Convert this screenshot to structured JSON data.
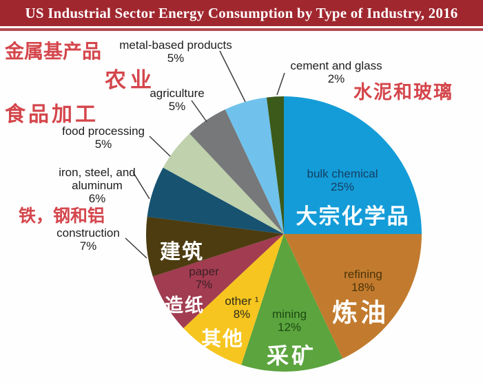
{
  "colors": {
    "title_bar": "#a1272f",
    "title_stripe": "#b24a4e",
    "title_text": "#ffffff",
    "zh_red": "#d4464c",
    "en_label_text": "#1d1d1d",
    "leader_line": "#3a3a3a",
    "background": "#fefefe"
  },
  "chart_data": {
    "type": "pie",
    "title": "US Industrial Sector Energy Consumption by Type of Industry, 2016",
    "year": "2016",
    "values_are_percent": true,
    "total": 100,
    "start_angle_deg": 0,
    "direction": "clockwise",
    "legend": "none",
    "label_style": "large slices labeled inside, small slices labeled with external leader lines; bilingual English/Chinese labels",
    "slices": [
      {
        "label_en": "bulk chemical",
        "label_zh": "大宗化学品",
        "value": 25,
        "pct": "25%",
        "color": "#149cd8",
        "text_color": "#133f63",
        "label_placement": "inside"
      },
      {
        "label_en": "refining",
        "label_zh": "炼油",
        "value": 18,
        "pct": "18%",
        "color": "#c27b2e",
        "text_color": "#4b3208",
        "label_placement": "inside"
      },
      {
        "label_en": "mining",
        "label_zh": "采矿",
        "value": 12,
        "pct": "12%",
        "color": "#5ba43e",
        "text_color": "#1d4a12",
        "label_placement": "inside"
      },
      {
        "label_en": "other ¹",
        "label_zh": "其他",
        "value": 8,
        "pct": "8%",
        "color": "#f6c51f",
        "text_color": "#2d2a1a",
        "label_placement": "inside"
      },
      {
        "label_en": "paper",
        "label_zh": "造纸",
        "value": 7,
        "pct": "7%",
        "color": "#a23c50",
        "text_color": "#3b2027",
        "label_placement": "inside"
      },
      {
        "label_en": "construction",
        "label_zh": "建筑",
        "value": 7,
        "pct": "7%",
        "color": "#4c3c10",
        "label_placement": "outside"
      },
      {
        "label_en": "iron, steel, and aluminum",
        "label_zh": "铁，钢和铝",
        "value": 6,
        "pct": "6%",
        "color": "#175270",
        "label_placement": "outside"
      },
      {
        "label_en": "food processing",
        "label_zh": "食品加工",
        "value": 5,
        "pct": "5%",
        "color": "#bfd1ad",
        "label_placement": "outside"
      },
      {
        "label_en": "agriculture",
        "label_zh": "农业",
        "value": 5,
        "pct": "5%",
        "color": "#77787a",
        "label_placement": "outside"
      },
      {
        "label_en": "metal-based products",
        "label_zh": "金属基产品",
        "value": 5,
        "pct": "5%",
        "color": "#70c2ec",
        "label_placement": "outside"
      },
      {
        "label_en": "cement and glass",
        "label_zh": "水泥和玻璃",
        "value": 2,
        "pct": "2%",
        "color": "#3c5a1a",
        "label_placement": "outside"
      }
    ]
  }
}
